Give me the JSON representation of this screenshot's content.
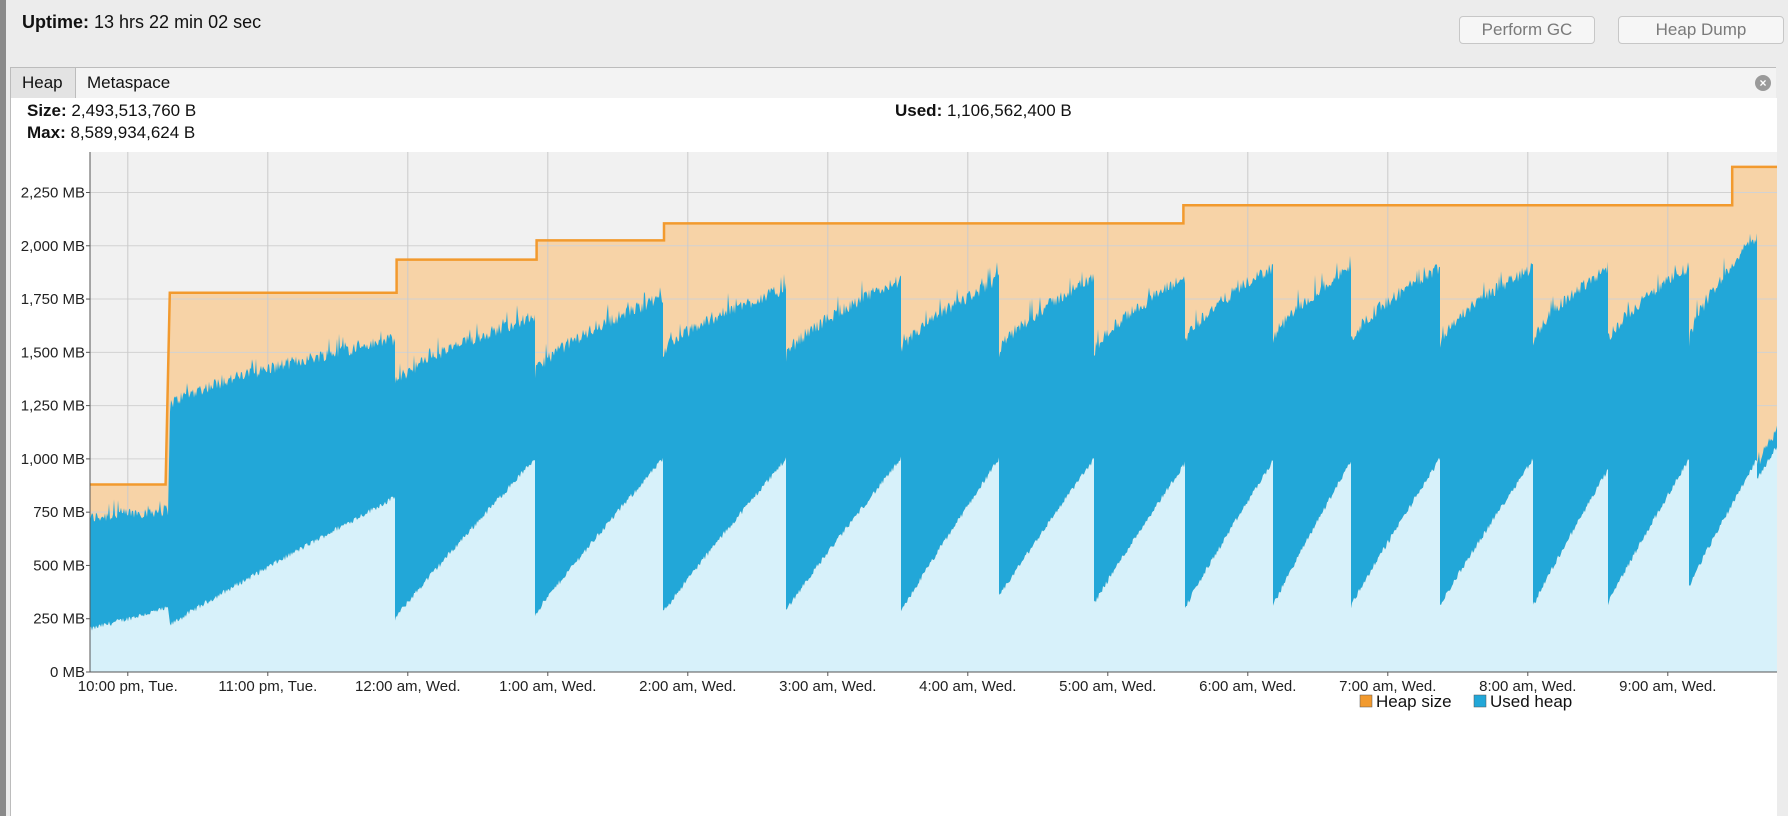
{
  "header": {
    "uptime_label": "Uptime:",
    "uptime_value": "13 hrs 22 min 02 sec",
    "perform_gc_label": "Perform GC",
    "heap_dump_label": "Heap Dump"
  },
  "tabs": [
    {
      "label": "Heap",
      "active": true
    },
    {
      "label": "Metaspace",
      "active": false
    }
  ],
  "stats": {
    "size_label": "Size:",
    "size_value": "2,493,513,760 B",
    "max_label": "Max:",
    "max_value": "8,589,934,624 B",
    "used_label": "Used:",
    "used_value": "1,106,562,400 B"
  },
  "legend": [
    {
      "label": "Heap size",
      "color": "#f29a2e"
    },
    {
      "label": "Used heap",
      "color": "#22a7d8"
    }
  ],
  "chart_data": {
    "type": "area",
    "ylim": [
      0,
      2440
    ],
    "yticks": [
      0,
      250,
      500,
      750,
      1000,
      1250,
      1500,
      1750,
      2000,
      2250
    ],
    "ytick_labels": [
      "0 MB",
      "250 MB",
      "500 MB",
      "750 MB",
      "1,000 MB",
      "1,250 MB",
      "1,500 MB",
      "1,750 MB",
      "2,000 MB",
      "2,250 MB"
    ],
    "xlim": [
      -0.27,
      11.78
    ],
    "xticks": [
      0,
      1,
      2,
      3,
      4,
      5,
      6,
      7,
      8,
      9,
      10,
      11
    ],
    "xtick_labels": [
      "10:00 pm, Tue.",
      "11:00 pm, Tue.",
      "12:00 am, Wed.",
      "1:00 am, Wed.",
      "2:00 am, Wed.",
      "3:00 am, Wed.",
      "4:00 am, Wed.",
      "5:00 am, Wed.",
      "6:00 am, Wed.",
      "7:00 am, Wed.",
      "8:00 am, Wed.",
      "9:00 am, Wed."
    ],
    "series": [
      {
        "name": "Heap size",
        "x": [
          -0.27,
          0.27,
          0.3,
          1.92,
          1.92,
          2.92,
          2.92,
          3.83,
          3.83,
          7.54,
          7.54,
          11.46,
          11.46,
          11.78
        ],
        "y": [
          880,
          880,
          1780,
          1780,
          1935,
          1935,
          2025,
          2025,
          2105,
          2105,
          2190,
          2190,
          2370,
          2370
        ]
      },
      {
        "name": "Used heap",
        "gc_cycles": [
          {
            "x0": -0.27,
            "x1": 0.29,
            "lo0": 200,
            "lo1": 300,
            "hi0": 720,
            "hi1": 760
          },
          {
            "x0": 0.3,
            "x1": 1.91,
            "lo0": 220,
            "lo1": 820,
            "hi0": 1250,
            "hi1": 1560
          },
          {
            "x0": 1.91,
            "x1": 2.91,
            "lo0": 250,
            "lo1": 1000,
            "hi0": 1350,
            "hi1": 1670
          },
          {
            "x0": 2.91,
            "x1": 3.82,
            "lo0": 270,
            "lo1": 1000,
            "hi0": 1400,
            "hi1": 1760
          },
          {
            "x0": 3.82,
            "x1": 4.7,
            "lo0": 280,
            "lo1": 1000,
            "hi0": 1500,
            "hi1": 1800
          },
          {
            "x0": 4.7,
            "x1": 5.52,
            "lo0": 290,
            "lo1": 1000,
            "hi0": 1480,
            "hi1": 1840
          },
          {
            "x0": 5.52,
            "x1": 6.22,
            "lo0": 280,
            "lo1": 1000,
            "hi0": 1500,
            "hi1": 1840
          },
          {
            "x0": 6.22,
            "x1": 6.9,
            "lo0": 350,
            "lo1": 1000,
            "hi0": 1500,
            "hi1": 1850
          },
          {
            "x0": 6.9,
            "x1": 7.55,
            "lo0": 320,
            "lo1": 980,
            "hi0": 1500,
            "hi1": 1850
          },
          {
            "x0": 7.55,
            "x1": 8.18,
            "lo0": 300,
            "lo1": 990,
            "hi0": 1550,
            "hi1": 1900
          },
          {
            "x0": 8.18,
            "x1": 8.74,
            "lo0": 310,
            "lo1": 990,
            "hi0": 1550,
            "hi1": 1900
          },
          {
            "x0": 8.74,
            "x1": 9.37,
            "lo0": 310,
            "lo1": 1000,
            "hi0": 1550,
            "hi1": 1900
          },
          {
            "x0": 9.37,
            "x1": 10.04,
            "lo0": 310,
            "lo1": 1000,
            "hi0": 1550,
            "hi1": 1900
          },
          {
            "x0": 10.04,
            "x1": 10.57,
            "lo0": 310,
            "lo1": 950,
            "hi0": 1550,
            "hi1": 1900
          },
          {
            "x0": 10.57,
            "x1": 11.15,
            "lo0": 320,
            "lo1": 1000,
            "hi0": 1550,
            "hi1": 1900
          },
          {
            "x0": 11.15,
            "x1": 11.64,
            "lo0": 400,
            "lo1": 1000,
            "hi0": 1550,
            "hi1": 2050
          },
          {
            "x0": 11.64,
            "x1": 11.78,
            "lo0": 900,
            "lo1": 1060,
            "hi0": 950,
            "hi1": 1140
          }
        ]
      }
    ],
    "grid": true,
    "legend_position": "bottom-right"
  }
}
